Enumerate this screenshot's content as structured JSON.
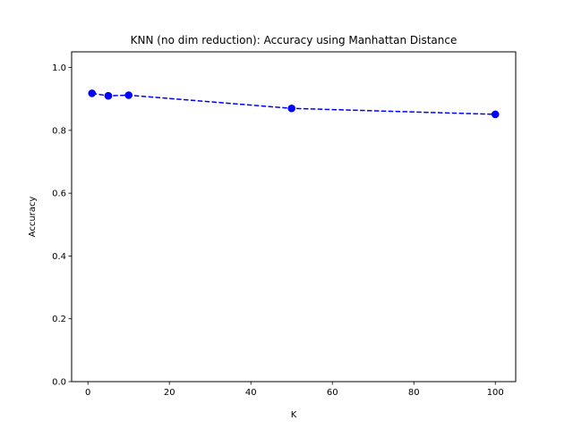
{
  "chart_data": {
    "type": "line",
    "title": "KNN (no dim reduction): Accuracy using Manhattan Distance",
    "xlabel": "K",
    "ylabel": "Accuracy",
    "xlim": [
      -4,
      105
    ],
    "ylim": [
      0,
      1.05
    ],
    "xticks": [
      0,
      20,
      40,
      60,
      80,
      100
    ],
    "yticks": [
      0.0,
      0.2,
      0.4,
      0.6,
      0.8,
      1.0
    ],
    "xtick_labels": [
      "0",
      "20",
      "40",
      "60",
      "80",
      "100"
    ],
    "ytick_labels": [
      "0.0",
      "0.2",
      "0.4",
      "0.6",
      "0.8",
      "1.0"
    ],
    "grid": false,
    "series": [
      {
        "x": [
          1,
          5,
          10,
          50,
          100
        ],
        "y": [
          0.918,
          0.91,
          0.912,
          0.87,
          0.851
        ],
        "color": "#0000ff",
        "line_style": "dashed",
        "marker": "circle"
      }
    ]
  }
}
